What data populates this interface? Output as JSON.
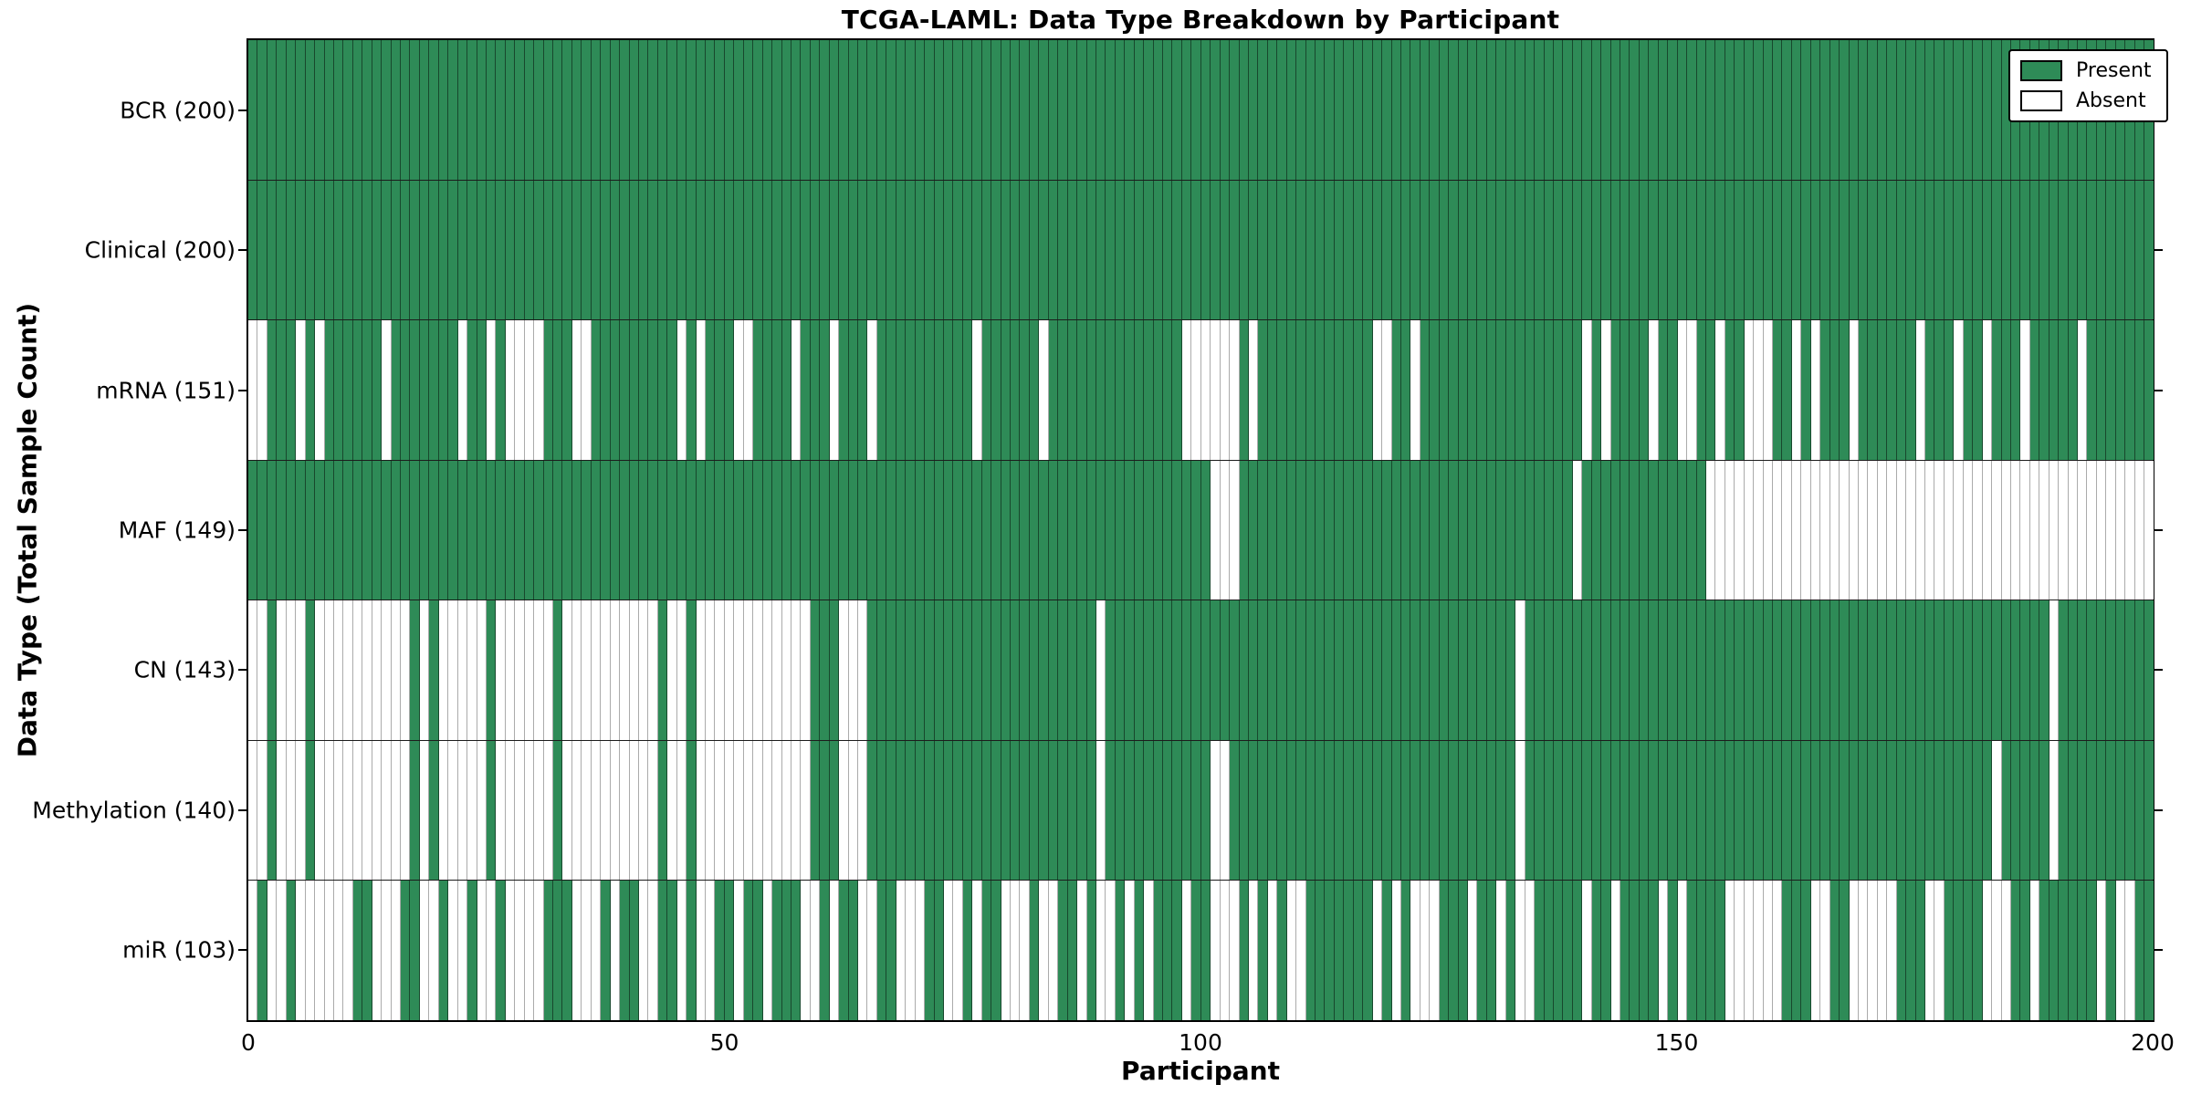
{
  "title": "TCGA-LAML: Data Type Breakdown by Participant",
  "axes": {
    "x_label": "Participant",
    "y_label": "Data Type (Total Sample Count)"
  },
  "legend": {
    "present_label": "Present",
    "absent_label": "Absent",
    "position": "upper right"
  },
  "colors": {
    "present": "#2E8B57",
    "absent": "#FFFFFF",
    "frame": "#000000",
    "present_cell_edge": "rgba(0,0,0,0.48)",
    "absent_cell_edge": "#ABABAB"
  },
  "chart_data": {
    "type": "heatmap",
    "title": "TCGA-LAML: Data Type Breakdown by Participant",
    "xlabel": "Participant",
    "ylabel": "Data Type (Total Sample Count)",
    "x_range": [
      0,
      200
    ],
    "x_ticks": [
      0,
      50,
      100,
      150,
      200
    ],
    "n_participants": 200,
    "cell_states": [
      "Present",
      "Absent"
    ],
    "grid": "row separators only",
    "legend_position": "upper right",
    "rows": [
      {
        "data_type": "BCR",
        "label": "BCR (200)",
        "present_count": 200,
        "absent_participants": []
      },
      {
        "data_type": "Clinical",
        "label": "Clinical (200)",
        "present_count": 200,
        "absent_participants": []
      },
      {
        "data_type": "mRNA",
        "label": "mRNA (151)",
        "present_count": 151,
        "absent_participants": [
          0,
          1,
          5,
          7,
          14,
          22,
          25,
          27,
          28,
          29,
          30,
          34,
          35,
          45,
          47,
          51,
          52,
          57,
          61,
          65,
          76,
          83,
          98,
          99,
          100,
          101,
          102,
          103,
          105,
          118,
          119,
          122,
          140,
          142,
          147,
          150,
          151,
          154,
          157,
          158,
          159,
          162,
          164,
          168,
          175,
          179,
          182,
          186,
          192
        ]
      },
      {
        "data_type": "MAF",
        "label": "MAF (149)",
        "present_count": 149,
        "absent_participants": [
          101,
          102,
          103,
          139,
          153,
          154,
          155,
          156,
          157,
          158,
          159,
          160,
          161,
          162,
          163,
          164,
          165,
          166,
          167,
          168,
          169,
          170,
          171,
          172,
          173,
          174,
          175,
          176,
          177,
          178,
          179,
          180,
          181,
          182,
          183,
          184,
          185,
          186,
          187,
          188,
          189,
          190,
          191,
          192,
          193,
          194,
          195,
          196,
          197,
          198,
          199
        ]
      },
      {
        "data_type": "CN",
        "label": "CN (143)",
        "present_count": 143,
        "absent_participants": [
          0,
          1,
          3,
          4,
          5,
          7,
          8,
          9,
          10,
          11,
          12,
          13,
          14,
          15,
          16,
          18,
          20,
          21,
          22,
          23,
          24,
          26,
          27,
          28,
          29,
          30,
          31,
          33,
          34,
          35,
          36,
          37,
          38,
          39,
          40,
          41,
          42,
          44,
          45,
          47,
          48,
          49,
          50,
          51,
          52,
          53,
          54,
          55,
          56,
          57,
          58,
          62,
          63,
          64,
          89,
          133,
          189
        ]
      },
      {
        "data_type": "Methylation",
        "label": "Methylation (140)",
        "present_count": 140,
        "absent_participants": [
          0,
          1,
          3,
          4,
          5,
          7,
          8,
          9,
          10,
          11,
          12,
          13,
          14,
          15,
          16,
          18,
          20,
          21,
          22,
          23,
          24,
          26,
          27,
          28,
          29,
          30,
          31,
          33,
          34,
          35,
          36,
          37,
          38,
          39,
          40,
          41,
          42,
          44,
          45,
          47,
          48,
          49,
          50,
          51,
          52,
          53,
          54,
          55,
          56,
          57,
          58,
          62,
          63,
          64,
          89,
          101,
          102,
          133,
          183,
          189
        ]
      },
      {
        "data_type": "miR",
        "label": "miR (103)",
        "present_count": 103,
        "absent_participants": [
          0,
          2,
          3,
          5,
          6,
          7,
          8,
          9,
          10,
          13,
          14,
          15,
          18,
          19,
          21,
          22,
          24,
          25,
          27,
          28,
          29,
          30,
          34,
          35,
          36,
          38,
          41,
          42,
          45,
          47,
          48,
          51,
          54,
          58,
          59,
          61,
          64,
          65,
          68,
          69,
          70,
          73,
          74,
          76,
          79,
          80,
          81,
          83,
          84,
          87,
          89,
          90,
          92,
          94,
          98,
          101,
          102,
          103,
          105,
          107,
          109,
          110,
          118,
          120,
          122,
          123,
          124,
          128,
          131,
          133,
          134,
          140,
          143,
          148,
          150,
          155,
          156,
          157,
          158,
          159,
          160,
          164,
          165,
          168,
          169,
          170,
          171,
          172,
          176,
          177,
          182,
          183,
          184,
          187,
          194,
          196,
          197
        ]
      }
    ]
  }
}
